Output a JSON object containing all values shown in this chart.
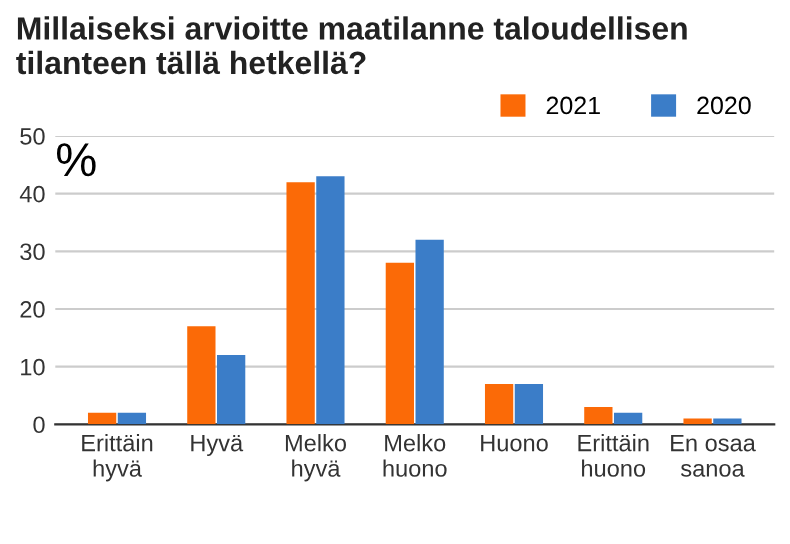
{
  "chart_data": {
    "type": "bar",
    "title": "Millaiseksi arvioitte maatilanne taloudellisen\ntilanteen tällä hetkellä?",
    "categories": [
      "Erittäin\nhyvä",
      "Hyvä",
      "Melko\nhyvä",
      "Melko\nhuono",
      "Huono",
      "Erittäin\nhuono",
      "En osaa\nsanoa"
    ],
    "series": [
      {
        "name": "2021",
        "color": "#fb6a07",
        "values": [
          2,
          17,
          42,
          28,
          7,
          3,
          1
        ]
      },
      {
        "name": "2020",
        "color": "#3b7dc8",
        "values": [
          2,
          12,
          43,
          32,
          7,
          2,
          1
        ]
      }
    ],
    "ylim": [
      0,
      50
    ],
    "yticks": [
      0,
      10,
      20,
      30,
      40,
      50
    ],
    "grid": "y",
    "legend": "top right",
    "annotations": [
      "%"
    ]
  }
}
